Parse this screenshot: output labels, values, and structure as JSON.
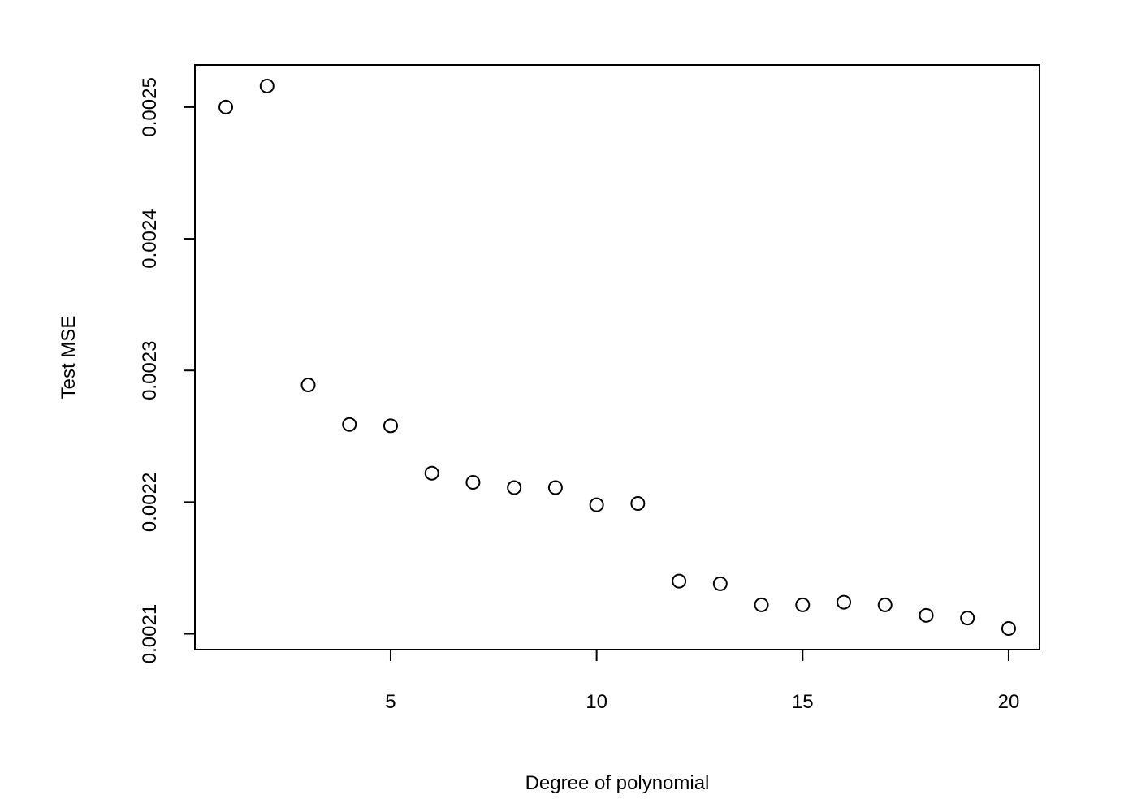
{
  "chart_data": {
    "type": "scatter",
    "title": "",
    "xlabel": "Degree of polynomial",
    "ylabel": "Test MSE",
    "xlim": [
      0.25,
      20.75
    ],
    "ylim": [
      0.002088,
      0.002532
    ],
    "xticks": [
      5,
      10,
      15,
      20
    ],
    "xtick_labels": [
      "5",
      "10",
      "15",
      "20"
    ],
    "yticks": [
      0.0021,
      0.0022,
      0.0023,
      0.0024,
      0.0025
    ],
    "ytick_labels": [
      "0.0021",
      "0.0022",
      "0.0023",
      "0.0024",
      "0.0025"
    ],
    "grid": false,
    "marker": "open-circle",
    "series": [
      {
        "x": [
          1,
          2,
          3,
          4,
          5,
          6,
          7,
          8,
          9,
          10,
          11,
          12,
          13,
          14,
          15,
          16,
          17,
          18,
          19,
          20
        ],
        "y": [
          0.0025,
          0.002516,
          0.002289,
          0.002259,
          0.002258,
          0.002222,
          0.002215,
          0.002211,
          0.002211,
          0.002198,
          0.002199,
          0.00214,
          0.002138,
          0.002122,
          0.002122,
          0.002124,
          0.002122,
          0.002114,
          0.002112,
          0.002104
        ]
      }
    ]
  }
}
